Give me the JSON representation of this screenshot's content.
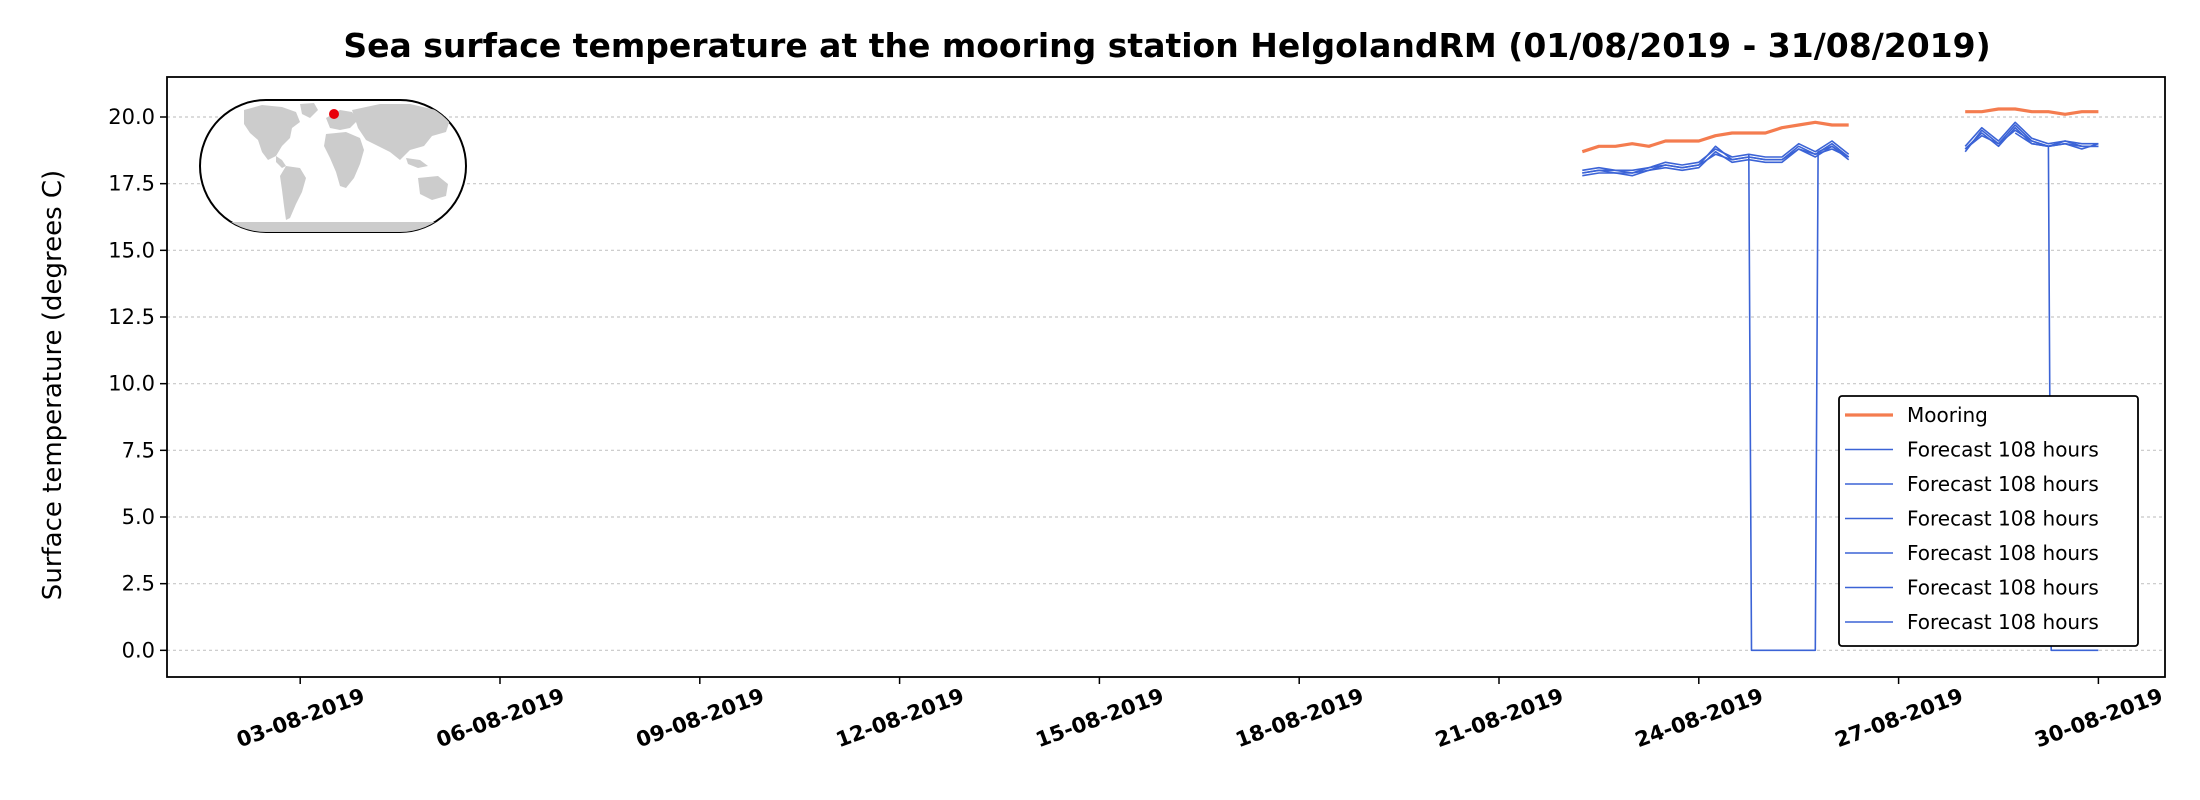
{
  "chart_data": {
    "type": "line",
    "title": "Sea surface temperature at the mooring station HelgolandRM (01/08/2019 - 31/08/2019)",
    "xlabel": "",
    "ylabel": "Surface temperature (degrees C)",
    "xlim": [
      "2019-08-01",
      "2019-08-31"
    ],
    "ylim": [
      -1.0,
      21.5
    ],
    "yticks": [
      0.0,
      2.5,
      5.0,
      7.5,
      10.0,
      12.5,
      15.0,
      17.5,
      20.0
    ],
    "ytick_labels": [
      "0.0",
      "2.5",
      "5.0",
      "7.5",
      "10.0",
      "12.5",
      "15.0",
      "17.5",
      "20.0"
    ],
    "xticks": [
      "2019-08-03",
      "2019-08-06",
      "2019-08-09",
      "2019-08-12",
      "2019-08-15",
      "2019-08-18",
      "2019-08-21",
      "2019-08-24",
      "2019-08-27",
      "2019-08-30"
    ],
    "xtick_labels": [
      "03-08-2019",
      "06-08-2019",
      "09-08-2019",
      "12-08-2019",
      "15-08-2019",
      "18-08-2019",
      "21-08-2019",
      "24-08-2019",
      "27-08-2019",
      "30-08-2019"
    ],
    "grid": "horizontal dotted",
    "legend_position": "lower-right",
    "series": [
      {
        "name": "Mooring",
        "color": "#f47c4f",
        "segments": [
          [
            [
              "2019-08-22 06:00",
              18.7
            ],
            [
              "2019-08-22 12:00",
              18.9
            ],
            [
              "2019-08-22 18:00",
              18.9
            ],
            [
              "2019-08-23 00:00",
              19.0
            ],
            [
              "2019-08-23 06:00",
              18.9
            ],
            [
              "2019-08-23 12:00",
              19.1
            ],
            [
              "2019-08-23 18:00",
              19.1
            ],
            [
              "2019-08-24 00:00",
              19.1
            ],
            [
              "2019-08-24 06:00",
              19.3
            ],
            [
              "2019-08-24 12:00",
              19.4
            ],
            [
              "2019-08-24 18:00",
              19.4
            ],
            [
              "2019-08-25 00:00",
              19.4
            ],
            [
              "2019-08-25 06:00",
              19.6
            ],
            [
              "2019-08-25 12:00",
              19.7
            ],
            [
              "2019-08-25 18:00",
              19.8
            ],
            [
              "2019-08-26 00:00",
              19.7
            ],
            [
              "2019-08-26 06:00",
              19.7
            ]
          ],
          [
            [
              "2019-08-28 00:00",
              20.2
            ],
            [
              "2019-08-28 06:00",
              20.2
            ],
            [
              "2019-08-28 12:00",
              20.3
            ],
            [
              "2019-08-28 18:00",
              20.3
            ],
            [
              "2019-08-29 00:00",
              20.2
            ],
            [
              "2019-08-29 06:00",
              20.2
            ],
            [
              "2019-08-29 12:00",
              20.1
            ],
            [
              "2019-08-29 18:00",
              20.2
            ],
            [
              "2019-08-30 00:00",
              20.2
            ]
          ]
        ]
      },
      {
        "name": "Forecast 108 hours",
        "color": "#3b63d6",
        "segments": [
          [
            [
              "2019-08-22 06:00",
              17.9
            ],
            [
              "2019-08-22 12:00",
              18.0
            ],
            [
              "2019-08-22 18:00",
              18.0
            ],
            [
              "2019-08-23 00:00",
              17.9
            ],
            [
              "2019-08-23 06:00",
              18.1
            ],
            [
              "2019-08-23 12:00",
              18.2
            ],
            [
              "2019-08-23 18:00",
              18.1
            ],
            [
              "2019-08-24 00:00",
              18.2
            ],
            [
              "2019-08-24 06:00",
              18.9
            ],
            [
              "2019-08-24 12:00",
              18.4
            ],
            [
              "2019-08-24 18:00",
              18.5
            ],
            [
              "2019-08-25 00:00",
              18.4
            ],
            [
              "2019-08-25 06:00",
              18.4
            ],
            [
              "2019-08-25 12:00",
              18.9
            ],
            [
              "2019-08-25 18:00",
              18.6
            ],
            [
              "2019-08-26 00:00",
              19.0
            ],
            [
              "2019-08-26 06:00",
              18.5
            ]
          ],
          [
            [
              "2019-08-28 00:00",
              18.7
            ],
            [
              "2019-08-28 06:00",
              19.5
            ],
            [
              "2019-08-28 12:00",
              19.0
            ],
            [
              "2019-08-28 18:00",
              19.7
            ],
            [
              "2019-08-29 00:00",
              19.1
            ],
            [
              "2019-08-29 06:00",
              18.9
            ],
            [
              "2019-08-29 12:00",
              19.1
            ],
            [
              "2019-08-29 18:00",
              18.9
            ],
            [
              "2019-08-30 00:00",
              18.9
            ]
          ]
        ]
      },
      {
        "name": "Forecast 108 hours",
        "color": "#3b63d6",
        "segments": [
          [
            [
              "2019-08-22 06:00",
              17.8
            ],
            [
              "2019-08-22 12:00",
              17.9
            ],
            [
              "2019-08-22 18:00",
              17.9
            ],
            [
              "2019-08-23 00:00",
              17.8
            ],
            [
              "2019-08-23 06:00",
              18.0
            ],
            [
              "2019-08-23 12:00",
              18.1
            ],
            [
              "2019-08-23 18:00",
              18.0
            ],
            [
              "2019-08-24 00:00",
              18.1
            ],
            [
              "2019-08-24 06:00",
              18.7
            ],
            [
              "2019-08-24 12:00",
              18.3
            ],
            [
              "2019-08-24 18:00",
              18.4
            ],
            [
              "2019-08-25 00:00",
              18.3
            ],
            [
              "2019-08-25 06:00",
              18.3
            ],
            [
              "2019-08-25 12:00",
              18.8
            ],
            [
              "2019-08-25 18:00",
              18.5
            ],
            [
              "2019-08-26 00:00",
              18.9
            ],
            [
              "2019-08-26 06:00",
              18.4
            ]
          ],
          [
            [
              "2019-08-28 00:00",
              18.8
            ],
            [
              "2019-08-28 06:00",
              19.4
            ],
            [
              "2019-08-28 12:00",
              18.9
            ],
            [
              "2019-08-28 18:00",
              19.6
            ],
            [
              "2019-08-29 00:00",
              19.0
            ],
            [
              "2019-08-29 06:00",
              18.9
            ],
            [
              "2019-08-29 12:00",
              19.0
            ],
            [
              "2019-08-29 18:00",
              18.8
            ],
            [
              "2019-08-30 00:00",
              19.0
            ]
          ]
        ]
      },
      {
        "name": "Forecast 108 hours",
        "color": "#3b63d6",
        "segments": [
          [
            [
              "2019-08-22 06:00",
              18.0
            ],
            [
              "2019-08-22 12:00",
              18.1
            ],
            [
              "2019-08-22 18:00",
              18.0
            ],
            [
              "2019-08-23 00:00",
              18.0
            ],
            [
              "2019-08-23 06:00",
              18.1
            ],
            [
              "2019-08-23 12:00",
              18.3
            ],
            [
              "2019-08-23 18:00",
              18.2
            ],
            [
              "2019-08-24 00:00",
              18.3
            ],
            [
              "2019-08-24 06:00",
              18.8
            ],
            [
              "2019-08-24 12:00",
              18.5
            ],
            [
              "2019-08-24 18:00",
              18.6
            ],
            [
              "2019-08-25 00:00",
              18.5
            ],
            [
              "2019-08-25 06:00",
              18.5
            ],
            [
              "2019-08-25 12:00",
              19.0
            ],
            [
              "2019-08-25 18:00",
              18.7
            ],
            [
              "2019-08-26 00:00",
              19.1
            ],
            [
              "2019-08-26 06:00",
              18.6
            ]
          ],
          [
            [
              "2019-08-28 00:00",
              18.9
            ],
            [
              "2019-08-28 06:00",
              19.6
            ],
            [
              "2019-08-28 12:00",
              19.1
            ],
            [
              "2019-08-28 18:00",
              19.8
            ],
            [
              "2019-08-29 00:00",
              19.2
            ],
            [
              "2019-08-29 06:00",
              19.0
            ],
            [
              "2019-08-29 12:00",
              19.1
            ],
            [
              "2019-08-29 18:00",
              19.0
            ],
            [
              "2019-08-30 00:00",
              19.0
            ]
          ]
        ]
      },
      {
        "name": "Forecast 108 hours",
        "color": "#3b63d6",
        "segments": [
          [
            [
              "2019-08-22 06:00",
              17.9
            ],
            [
              "2019-08-22 12:00",
              18.0
            ],
            [
              "2019-08-22 18:00",
              17.9
            ],
            [
              "2019-08-23 00:00",
              17.9
            ],
            [
              "2019-08-23 06:00",
              18.0
            ],
            [
              "2019-08-23 12:00",
              18.2
            ],
            [
              "2019-08-23 18:00",
              18.1
            ],
            [
              "2019-08-24 00:00",
              18.2
            ],
            [
              "2019-08-24 06:00",
              18.6
            ],
            [
              "2019-08-24 12:00",
              18.4
            ],
            [
              "2019-08-24 18:00",
              18.5
            ],
            [
              "2019-08-25 00:00",
              18.4
            ],
            [
              "2019-08-25 06:00",
              18.4
            ],
            [
              "2019-08-25 12:00",
              18.8
            ],
            [
              "2019-08-25 18:00",
              18.6
            ],
            [
              "2019-08-26 00:00",
              18.8
            ],
            [
              "2019-08-26 06:00",
              18.5
            ]
          ],
          [
            [
              "2019-08-28 00:00",
              18.8
            ],
            [
              "2019-08-28 06:00",
              19.3
            ],
            [
              "2019-08-28 12:00",
              19.0
            ],
            [
              "2019-08-28 18:00",
              19.5
            ],
            [
              "2019-08-29 00:00",
              19.1
            ],
            [
              "2019-08-29 06:00",
              18.9
            ],
            [
              "2019-08-29 12:00",
              19.0
            ],
            [
              "2019-08-29 18:00",
              18.9
            ],
            [
              "2019-08-30 00:00",
              18.9
            ]
          ]
        ]
      },
      {
        "name": "Forecast 108 hours",
        "color": "#3b63d6",
        "segments": [
          [
            [
              "2019-08-24 18:00",
              18.6
            ],
            [
              "2019-08-24 19:00",
              0.0
            ],
            [
              "2019-08-25 18:00",
              0.0
            ],
            [
              "2019-08-25 19:00",
              18.7
            ],
            [
              "2019-08-26 00:00",
              18.9
            ],
            [
              "2019-08-26 06:00",
              18.5
            ]
          ]
        ]
      },
      {
        "name": "Forecast 108 hours",
        "color": "#3b63d6",
        "segments": [
          [
            [
              "2019-08-28 18:00",
              19.4
            ],
            [
              "2019-08-29 00:00",
              19.0
            ],
            [
              "2019-08-29 06:00",
              18.9
            ],
            [
              "2019-08-29 07:00",
              0.0
            ],
            [
              "2019-08-30 00:00",
              0.0
            ]
          ]
        ]
      }
    ]
  },
  "inset_map": {
    "marker_color": "#e8000b",
    "land_color": "#cccccc"
  }
}
